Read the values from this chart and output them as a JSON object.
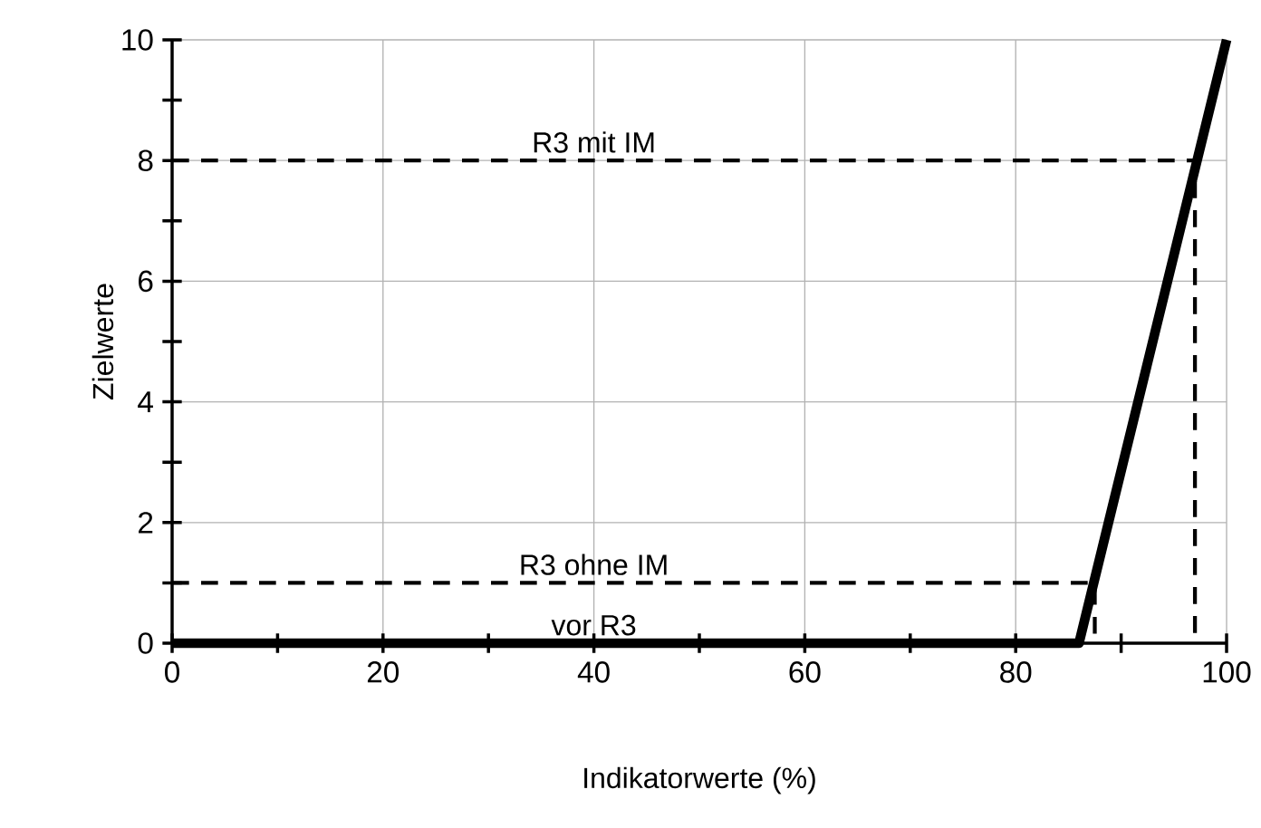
{
  "chart_data": {
    "type": "line",
    "xlabel": "Indikatorwerte (%)",
    "ylabel": "Zielwerte",
    "xlim": [
      0,
      100
    ],
    "ylim": [
      0,
      10
    ],
    "xticks": [
      0,
      20,
      40,
      60,
      80,
      100
    ],
    "yticks": [
      0,
      2,
      4,
      6,
      8,
      10
    ],
    "grid": true,
    "marker": "none",
    "series": [
      {
        "name": "vor R3",
        "color": "#000000",
        "line_style": "solid",
        "x": [
          0,
          86,
          100
        ],
        "values": [
          0,
          0,
          10
        ]
      },
      {
        "name": "R3 mit IM",
        "color": "#000000",
        "line_style": "dashed",
        "x": [
          0,
          97,
          97
        ],
        "values": [
          8,
          8,
          0
        ]
      },
      {
        "name": "R3 ohne IM",
        "color": "#000000",
        "line_style": "dashed",
        "x": [
          0,
          87.5,
          87.5
        ],
        "values": [
          1,
          1,
          0
        ]
      }
    ]
  }
}
